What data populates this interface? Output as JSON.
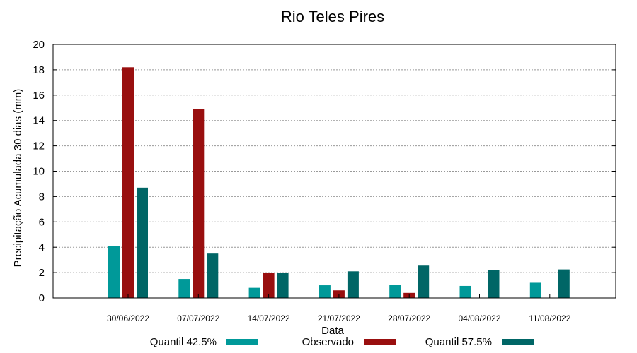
{
  "chart_data": {
    "type": "bar",
    "title": "Rio Teles Pires",
    "xlabel": "Data",
    "ylabel": "Precipitação Acumulada 30 dias (mm)",
    "ylim": [
      0,
      20
    ],
    "yticks": [
      "0",
      "2",
      "4",
      "6",
      "8",
      "10",
      "12",
      "14",
      "16",
      "18",
      "20"
    ],
    "grid": true,
    "legend_position": "bottom",
    "categories": [
      "30/06/2022",
      "07/07/2022",
      "14/07/2022",
      "21/07/2022",
      "28/07/2022",
      "04/08/2022",
      "11/08/2022"
    ],
    "series": [
      {
        "name": "Quantil 42.5%",
        "color": "#009999",
        "values": [
          4.1,
          1.5,
          0.8,
          1.0,
          1.05,
          0.95,
          1.2
        ]
      },
      {
        "name": "Observado",
        "color": "#990F0F",
        "values": [
          18.2,
          14.9,
          1.95,
          0.6,
          0.4,
          0,
          0
        ]
      },
      {
        "name": "Quantil 57.5%",
        "color": "#006666",
        "values": [
          8.7,
          3.5,
          1.95,
          2.1,
          2.55,
          2.2,
          2.25
        ]
      }
    ]
  }
}
